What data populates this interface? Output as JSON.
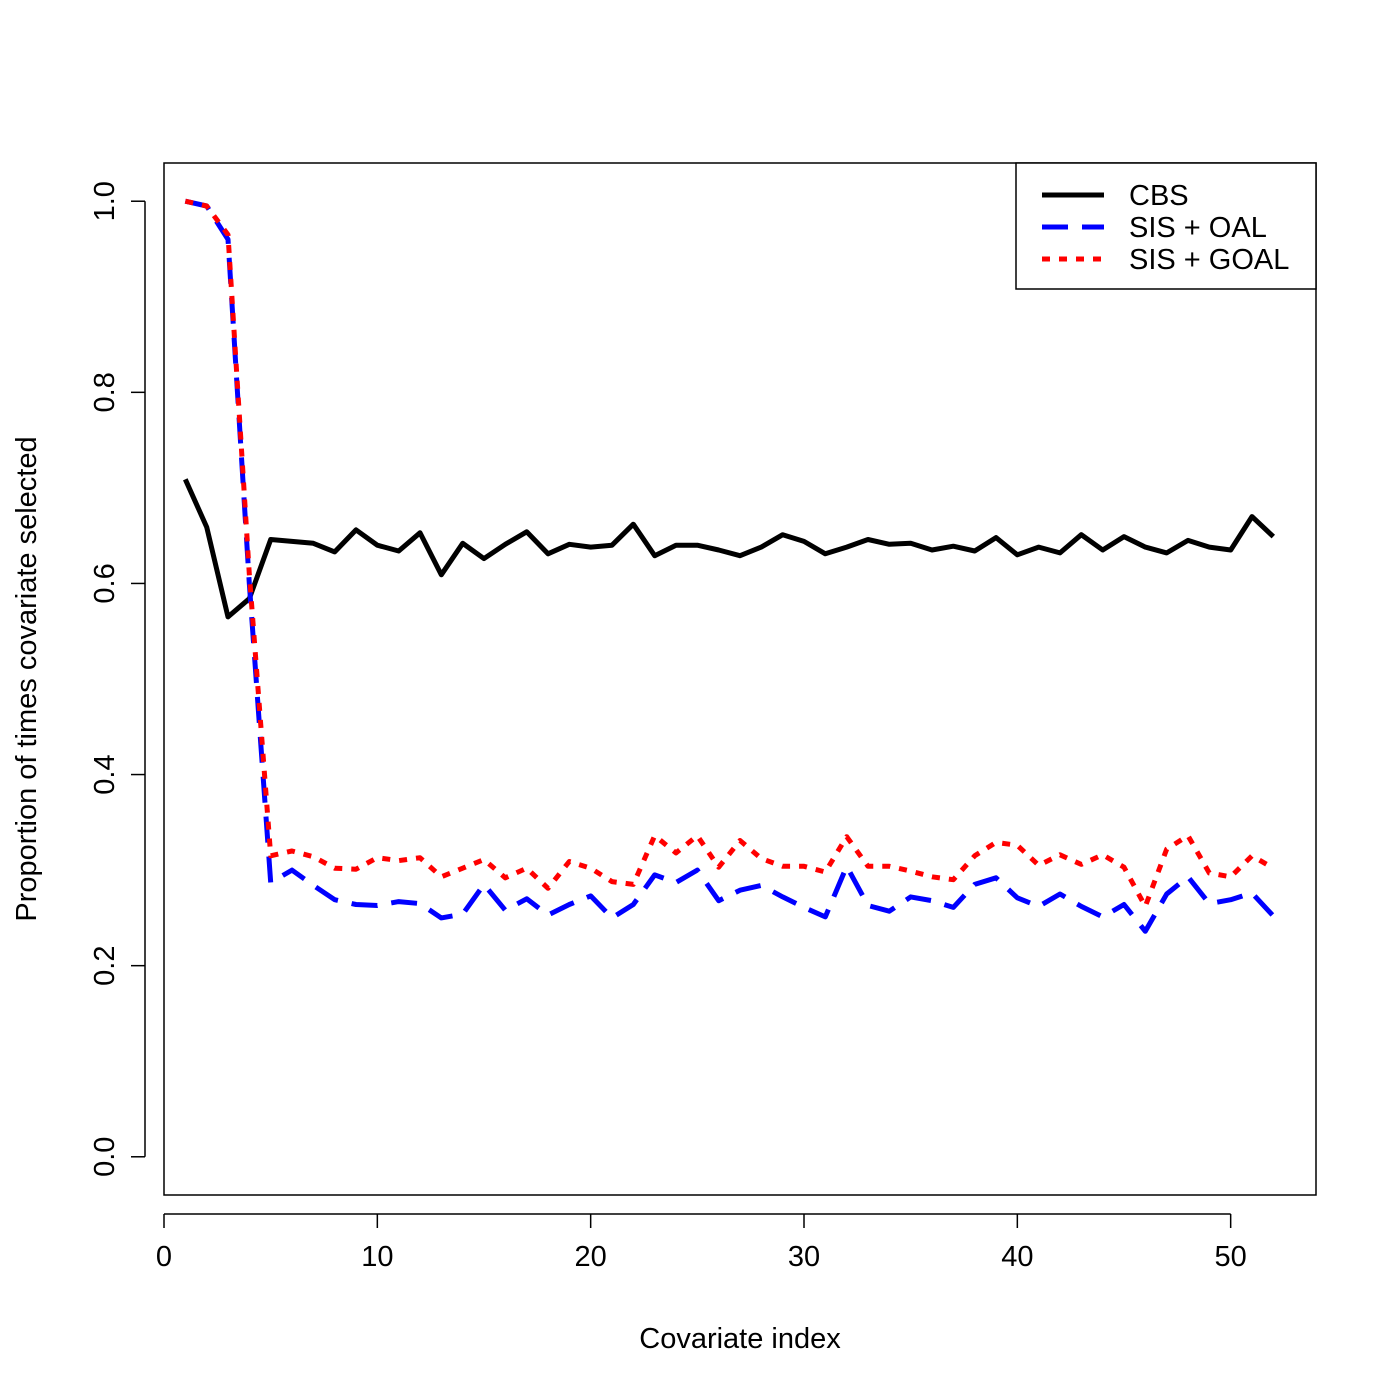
{
  "chart_data": {
    "type": "line",
    "title": "",
    "xlabel": "Covariate index",
    "ylabel": "Proportion of times covariate selected",
    "xlim": [
      0,
      54
    ],
    "ylim": [
      -0.04,
      1.04
    ],
    "xticks": [
      0,
      10,
      20,
      30,
      40,
      50
    ],
    "xtick_labels": [
      "0",
      "10",
      "20",
      "30",
      "40",
      "50"
    ],
    "yticks": [
      0.0,
      0.2,
      0.4,
      0.6,
      0.8,
      1.0
    ],
    "ytick_labels": [
      "0.0",
      "0.2",
      "0.4",
      "0.6",
      "0.8",
      "1.0"
    ],
    "grid": false,
    "legend_position": "top-right",
    "x": [
      1,
      2,
      3,
      4,
      5,
      6,
      7,
      8,
      9,
      10,
      11,
      12,
      13,
      14,
      15,
      16,
      17,
      18,
      19,
      20,
      21,
      22,
      23,
      24,
      25,
      26,
      27,
      28,
      29,
      30,
      31,
      32,
      33,
      34,
      35,
      36,
      37,
      38,
      39,
      40,
      41,
      42,
      43,
      44,
      45,
      46,
      47,
      48,
      49,
      50,
      51,
      52
    ],
    "series": [
      {
        "name": "CBS",
        "color": "#000000",
        "dash": "solid",
        "values": [
          0.709,
          0.659,
          0.565,
          0.584,
          0.646,
          0.644,
          0.642,
          0.633,
          0.656,
          0.64,
          0.634,
          0.653,
          0.609,
          0.642,
          0.626,
          0.641,
          0.654,
          0.631,
          0.641,
          0.638,
          0.64,
          0.662,
          0.629,
          0.64,
          0.64,
          0.635,
          0.629,
          0.638,
          0.651,
          0.644,
          0.631,
          0.638,
          0.646,
          0.641,
          0.642,
          0.635,
          0.639,
          0.634,
          0.648,
          0.63,
          0.638,
          0.632,
          0.651,
          0.635,
          0.649,
          0.638,
          0.632,
          0.645,
          0.638,
          0.635,
          0.67,
          0.649
        ]
      },
      {
        "name": "SIS + OAL",
        "color": "#0000ff",
        "dash": "dashed",
        "values": [
          1.0,
          0.995,
          0.96,
          0.6,
          0.287,
          0.3,
          0.284,
          0.269,
          0.264,
          0.263,
          0.267,
          0.265,
          0.25,
          0.254,
          0.285,
          0.258,
          0.27,
          0.253,
          0.264,
          0.273,
          0.25,
          0.264,
          0.295,
          0.287,
          0.3,
          0.268,
          0.279,
          0.284,
          0.272,
          0.261,
          0.251,
          0.304,
          0.263,
          0.257,
          0.272,
          0.268,
          0.261,
          0.285,
          0.292,
          0.271,
          0.262,
          0.275,
          0.262,
          0.251,
          0.264,
          0.236,
          0.275,
          0.293,
          0.265,
          0.269,
          0.276,
          0.252
        ]
      },
      {
        "name": "SIS + GOAL",
        "color": "#ff0000",
        "dash": "dotted",
        "values": [
          1.0,
          0.995,
          0.965,
          0.61,
          0.315,
          0.32,
          0.314,
          0.302,
          0.301,
          0.313,
          0.31,
          0.313,
          0.293,
          0.302,
          0.311,
          0.292,
          0.302,
          0.281,
          0.309,
          0.302,
          0.288,
          0.285,
          0.336,
          0.318,
          0.336,
          0.303,
          0.331,
          0.312,
          0.304,
          0.304,
          0.298,
          0.335,
          0.304,
          0.304,
          0.299,
          0.293,
          0.29,
          0.315,
          0.329,
          0.326,
          0.305,
          0.316,
          0.306,
          0.316,
          0.303,
          0.262,
          0.322,
          0.336,
          0.297,
          0.293,
          0.315,
          0.302
        ]
      }
    ]
  }
}
